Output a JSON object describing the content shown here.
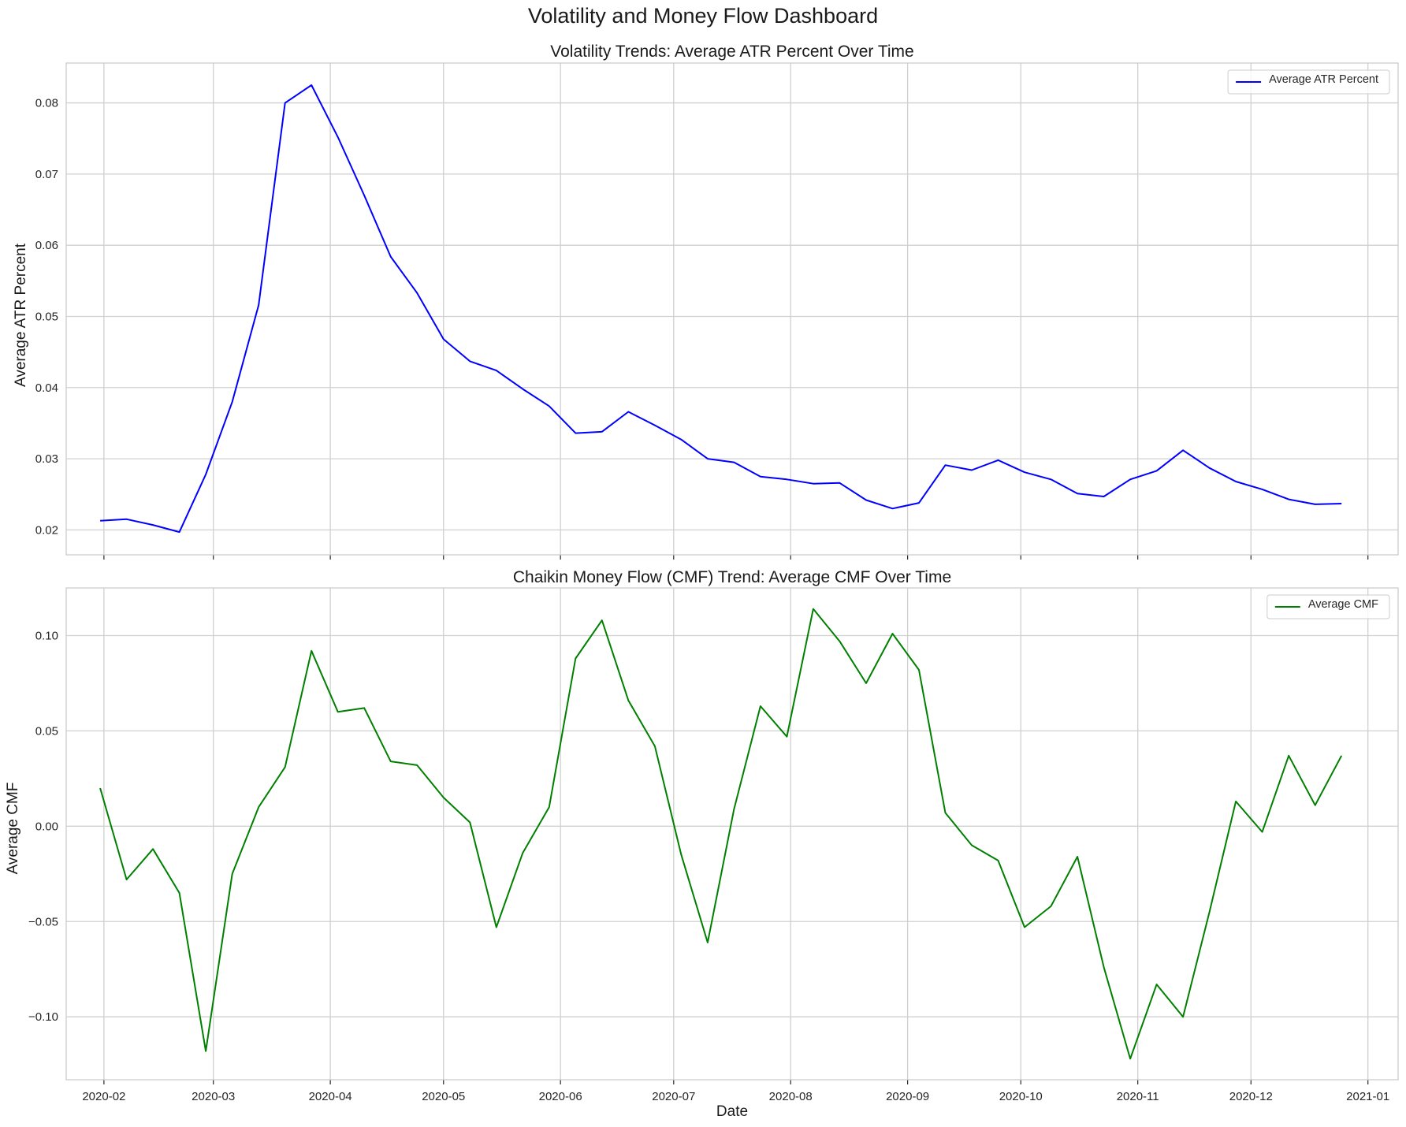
{
  "figure": {
    "title": "Volatility and Money Flow Dashboard"
  },
  "chart_data": [
    {
      "type": "line",
      "title": "Volatility Trends: Average ATR Percent Over Time",
      "xlabel": "",
      "ylabel": "Average ATR Percent",
      "x_tick_labels": [
        "2020-02",
        "2020-03",
        "2020-04",
        "2020-05",
        "2020-06",
        "2020-07",
        "2020-08",
        "2020-09",
        "2020-10",
        "2020-11",
        "2020-12",
        "2021-01"
      ],
      "y_ticks": [
        0.02,
        0.03,
        0.04,
        0.05,
        0.06,
        0.07,
        0.08
      ],
      "y_tick_labels": [
        "0.02",
        "0.03",
        "0.04",
        "0.05",
        "0.06",
        "0.07",
        "0.08"
      ],
      "ylim": [
        0.0165,
        0.0856
      ],
      "grid": true,
      "legend_position": "top-right",
      "x": [
        "2020-01-31",
        "2020-02-07",
        "2020-02-14",
        "2020-02-21",
        "2020-02-28",
        "2020-03-06",
        "2020-03-13",
        "2020-03-20",
        "2020-03-27",
        "2020-04-03",
        "2020-04-10",
        "2020-04-17",
        "2020-04-24",
        "2020-05-01",
        "2020-05-08",
        "2020-05-15",
        "2020-05-22",
        "2020-05-29",
        "2020-06-05",
        "2020-06-12",
        "2020-06-19",
        "2020-06-26",
        "2020-07-03",
        "2020-07-10",
        "2020-07-17",
        "2020-07-24",
        "2020-07-31",
        "2020-08-07",
        "2020-08-14",
        "2020-08-21",
        "2020-08-28",
        "2020-09-04",
        "2020-09-11",
        "2020-09-18",
        "2020-09-25",
        "2020-10-02",
        "2020-10-09",
        "2020-10-16",
        "2020-10-23",
        "2020-10-30",
        "2020-11-06",
        "2020-11-13",
        "2020-11-20",
        "2020-11-27",
        "2020-12-04",
        "2020-12-11",
        "2020-12-18",
        "2020-12-25"
      ],
      "series": [
        {
          "name": "Average ATR Percent",
          "color": "#0000ff",
          "values": [
            0.0213,
            0.0215,
            0.0207,
            0.0197,
            0.0278,
            0.038,
            0.0516,
            0.08,
            0.0825,
            0.0752,
            0.067,
            0.0584,
            0.0533,
            0.0468,
            0.0437,
            0.0424,
            0.0398,
            0.0374,
            0.0336,
            0.0338,
            0.0366,
            0.0347,
            0.0327,
            0.03,
            0.0295,
            0.0275,
            0.0271,
            0.0265,
            0.0266,
            0.0242,
            0.023,
            0.0238,
            0.0291,
            0.0284,
            0.0298,
            0.0281,
            0.0271,
            0.0251,
            0.0247,
            0.0271,
            0.0283,
            0.0312,
            0.0287,
            0.0268,
            0.0257,
            0.0243,
            0.0236,
            0.0237
          ]
        }
      ]
    },
    {
      "type": "line",
      "title": "Chaikin Money Flow (CMF) Trend: Average CMF Over Time",
      "xlabel": "Date",
      "ylabel": "Average CMF",
      "x_tick_labels": [
        "2020-02",
        "2020-03",
        "2020-04",
        "2020-05",
        "2020-06",
        "2020-07",
        "2020-08",
        "2020-09",
        "2020-10",
        "2020-11",
        "2020-12",
        "2021-01"
      ],
      "y_ticks": [
        -0.1,
        -0.05,
        0.0,
        0.05,
        0.1
      ],
      "y_tick_labels": [
        "−0.10",
        "−0.05",
        "0.00",
        "0.05",
        "0.10"
      ],
      "ylim": [
        -0.133,
        0.125
      ],
      "grid": true,
      "legend_position": "top-right",
      "x": [
        "2020-01-31",
        "2020-02-07",
        "2020-02-14",
        "2020-02-21",
        "2020-02-28",
        "2020-03-06",
        "2020-03-13",
        "2020-03-20",
        "2020-03-27",
        "2020-04-03",
        "2020-04-10",
        "2020-04-17",
        "2020-04-24",
        "2020-05-01",
        "2020-05-08",
        "2020-05-15",
        "2020-05-22",
        "2020-05-29",
        "2020-06-05",
        "2020-06-12",
        "2020-06-19",
        "2020-06-26",
        "2020-07-03",
        "2020-07-10",
        "2020-07-17",
        "2020-07-24",
        "2020-07-31",
        "2020-08-07",
        "2020-08-14",
        "2020-08-21",
        "2020-08-28",
        "2020-09-04",
        "2020-09-11",
        "2020-09-18",
        "2020-09-25",
        "2020-10-02",
        "2020-10-09",
        "2020-10-16",
        "2020-10-23",
        "2020-10-30",
        "2020-11-06",
        "2020-11-13",
        "2020-11-20",
        "2020-11-27",
        "2020-12-04",
        "2020-12-11",
        "2020-12-18",
        "2020-12-25"
      ],
      "series": [
        {
          "name": "Average CMF",
          "color": "#008000",
          "values": [
            0.02,
            -0.028,
            -0.012,
            -0.035,
            -0.118,
            -0.025,
            0.01,
            0.031,
            0.092,
            0.06,
            0.062,
            0.034,
            0.032,
            0.015,
            0.002,
            -0.053,
            -0.014,
            0.01,
            0.088,
            0.108,
            0.066,
            0.042,
            -0.015,
            -0.061,
            0.009,
            0.063,
            0.047,
            0.114,
            0.097,
            0.075,
            0.101,
            0.082,
            0.007,
            -0.01,
            -0.018,
            -0.053,
            -0.042,
            -0.016,
            -0.074,
            -0.122,
            -0.083,
            -0.1,
            -0.045,
            0.013,
            -0.003,
            0.037,
            0.011,
            0.037
          ]
        }
      ]
    }
  ]
}
